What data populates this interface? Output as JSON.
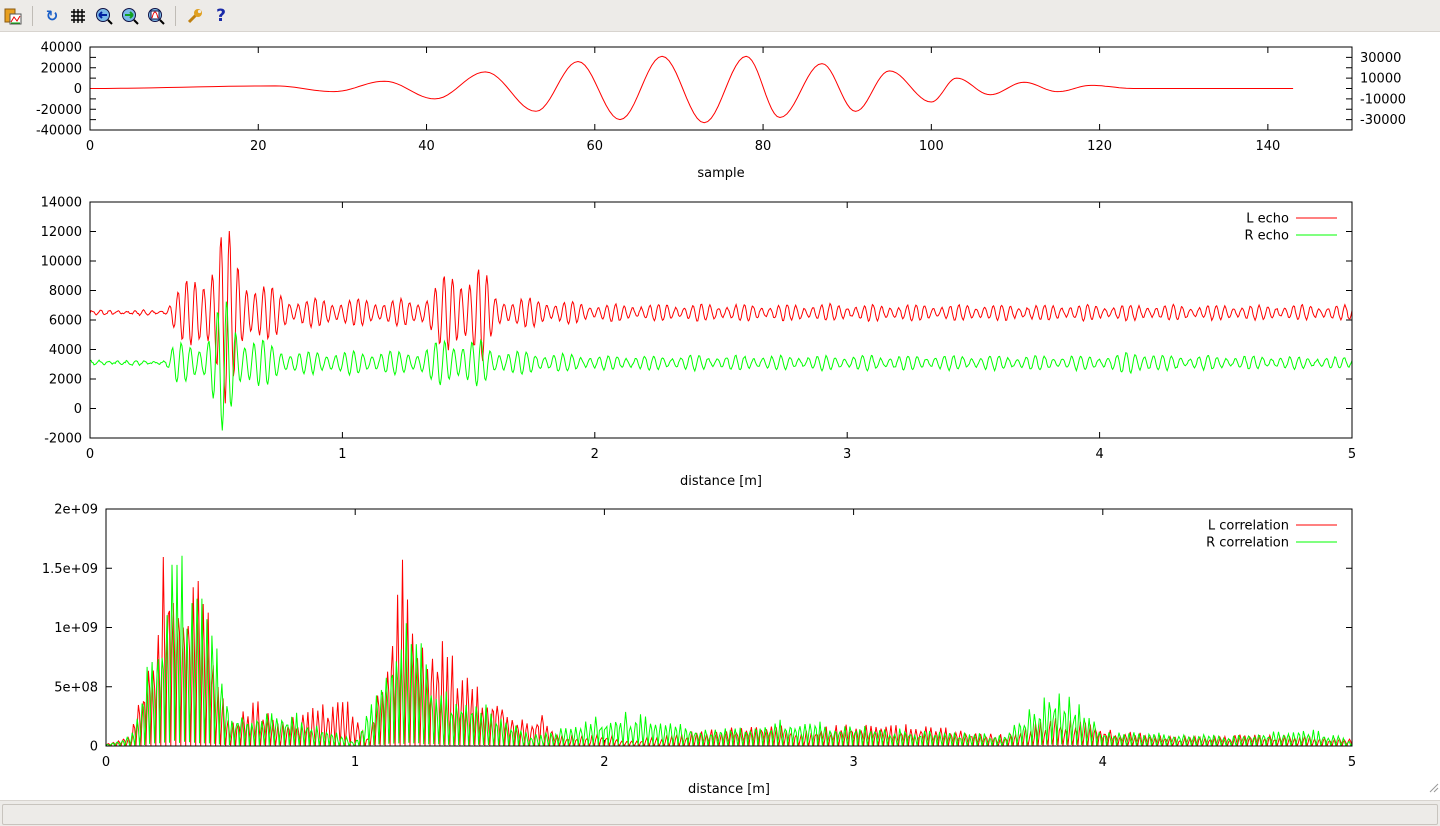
{
  "toolbar": {
    "items": [
      {
        "icon": "copy-to-clipboard-icon"
      },
      {
        "icon": "replot-icon"
      },
      {
        "icon": "grid-icon"
      },
      {
        "icon": "zoom-previous-icon"
      },
      {
        "icon": "zoom-next-icon"
      },
      {
        "icon": "autoscale-icon"
      },
      {
        "icon": "wrench-icon"
      },
      {
        "icon": "help-icon"
      }
    ]
  },
  "status_text": "",
  "chart_data": [
    {
      "type": "line",
      "xlabel": "sample",
      "ylabel": "",
      "xlim": [
        0,
        150
      ],
      "ylim": [
        -40000,
        40000
      ],
      "xticks": [
        "0",
        "20",
        "40",
        "60",
        "80",
        "100",
        "120",
        "140"
      ],
      "yticks": [
        "40000",
        "30000",
        "20000",
        "10000",
        "0",
        "-10000",
        "-20000",
        "-30000",
        "-40000"
      ],
      "series": [
        {
          "color": "#ff0000",
          "x": [
            0,
            22,
            29,
            35,
            41,
            47,
            53,
            58,
            63,
            68,
            73,
            78,
            82,
            87,
            91,
            95,
            100,
            103,
            107,
            111,
            115,
            119,
            124,
            143
          ],
          "y": [
            0,
            2500,
            -3000,
            7000,
            -10000,
            16000,
            -22000,
            26000,
            -30000,
            31000,
            -33000,
            31000,
            -28000,
            24000,
            -22000,
            17000,
            -13000,
            10000,
            -6000,
            6000,
            -3000,
            3000,
            0,
            0
          ]
        }
      ]
    },
    {
      "type": "line",
      "xlabel": "distance [m]",
      "xlim": [
        0,
        5
      ],
      "ylim": [
        -2000,
        14000
      ],
      "xticks": [
        "0",
        "1",
        "2",
        "3",
        "4",
        "5"
      ],
      "yticks": [
        "14000",
        "12000",
        "10000",
        "8000",
        "6000",
        "4000",
        "2000",
        "0",
        "-2000"
      ],
      "legend": "top-right",
      "series": [
        {
          "name": "L echo",
          "color": "#ff0000",
          "baseline": 6500,
          "envelope_x": [
            0,
            0.3,
            0.33,
            0.45,
            0.53,
            0.6,
            0.8,
            1.3,
            1.4,
            1.55,
            1.6,
            2,
            5
          ],
          "envelope_y": [
            150,
            150,
            1500,
            3000,
            6800,
            3000,
            1000,
            900,
            2500,
            3700,
            1200,
            600,
            500
          ]
        },
        {
          "name": "R echo",
          "color": "#00ff00",
          "baseline": 3100,
          "envelope_x": [
            0,
            0.3,
            0.33,
            0.45,
            0.53,
            0.6,
            0.8,
            1.3,
            1.4,
            1.55,
            1.6,
            2,
            4.05,
            4.15,
            4.25,
            5
          ],
          "envelope_y": [
            150,
            150,
            1300,
            1500,
            4800,
            2200,
            800,
            800,
            1700,
            1600,
            900,
            500,
            500,
            900,
            500,
            400
          ]
        }
      ]
    },
    {
      "type": "line",
      "xlabel": "distance [m]",
      "xlim": [
        0,
        5
      ],
      "ylim": [
        0,
        2000000000
      ],
      "xticks": [
        "0",
        "1",
        "2",
        "3",
        "4",
        "5"
      ],
      "yticks": [
        "2e+09",
        "1.5e+09",
        "1e+09",
        "5e+08",
        "0"
      ],
      "legend": "top-right",
      "series": [
        {
          "name": "L correlation",
          "color": "#ff0000",
          "envelope_x": [
            0,
            0.1,
            0.2,
            0.25,
            0.3,
            0.4,
            0.45,
            0.5,
            0.6,
            0.7,
            0.8,
            0.95,
            1.05,
            1.15,
            1.2,
            1.25,
            1.35,
            1.45,
            1.55,
            1.7,
            1.75,
            1.8,
            2,
            2.1,
            2.6,
            2.8,
            3,
            3.3,
            3.6,
            3.8,
            4.1,
            4.3,
            4.6,
            5
          ],
          "envelope_y": [
            20000000.0,
            100000000.0,
            1200000000.0,
            2000000000.0,
            1800000000.0,
            1400000000.0,
            600000000.0,
            200000000.0,
            400000000.0,
            200000000.0,
            300000000.0,
            450000000.0,
            100000000.0,
            1200000000.0,
            1700000000.0,
            1000000000.0,
            900000000.0,
            600000000.0,
            500000000.0,
            200000000.0,
            400000000.0,
            100000000.0,
            100000000.0,
            50000000.0,
            200000000.0,
            150000000.0,
            200000000.0,
            180000000.0,
            100000000.0,
            250000000.0,
            130000000.0,
            80000000.0,
            100000000.0,
            70000000.0
          ]
        },
        {
          "name": "R correlation",
          "color": "#00ff00",
          "envelope_x": [
            0,
            0.1,
            0.2,
            0.28,
            0.35,
            0.42,
            0.5,
            0.75,
            1.0,
            1.2,
            1.35,
            1.5,
            1.7,
            1.95,
            2.08,
            2.4,
            2.8,
            3.2,
            3.6,
            3.82,
            4.0,
            4.2,
            4.5,
            4.85,
            5
          ],
          "envelope_y": [
            10000000.0,
            100000000.0,
            1000000000.0,
            1850000000.0,
            1400000000.0,
            1200000000.0,
            300000000.0,
            300000000.0,
            50000000.0,
            1200000000.0,
            500000000.0,
            400000000.0,
            100000000.0,
            250000000.0,
            300000000.0,
            150000000.0,
            250000000.0,
            150000000.0,
            100000000.0,
            550000000.0,
            150000000.0,
            120000000.0,
            100000000.0,
            150000000.0,
            50000000.0
          ]
        }
      ]
    }
  ]
}
